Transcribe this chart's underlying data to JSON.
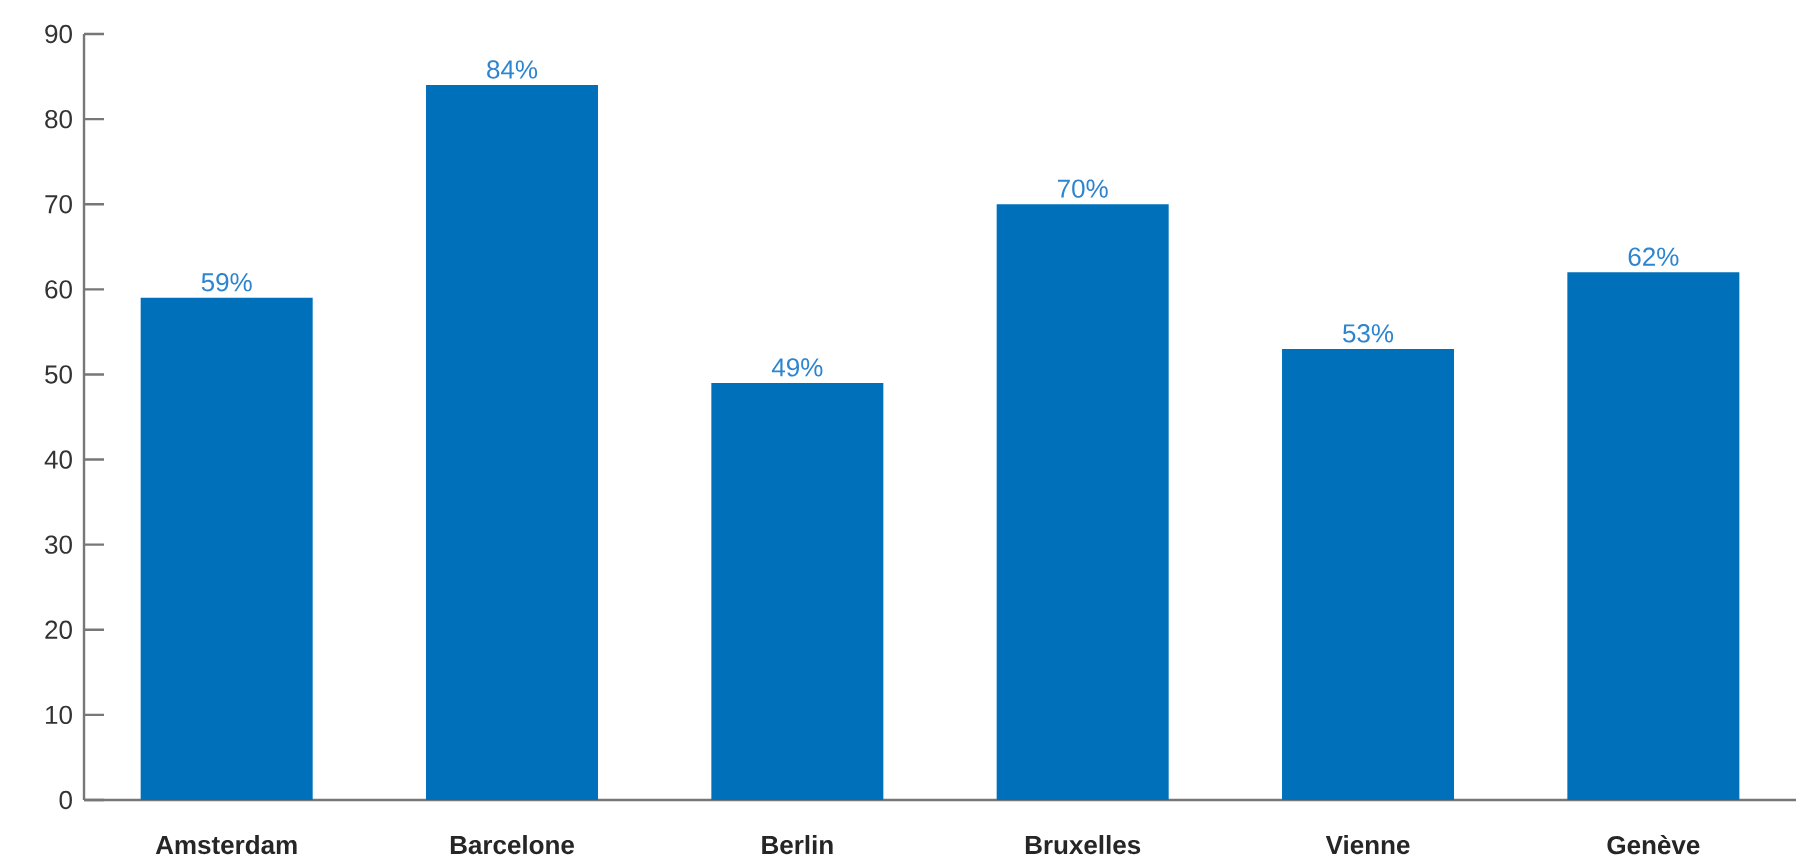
{
  "chart_data": {
    "type": "bar",
    "categories": [
      "Amsterdam",
      "Barcelone",
      "Berlin",
      "Bruxelles",
      "Vienne",
      "Genève"
    ],
    "values": [
      59,
      84,
      49,
      70,
      53,
      62
    ],
    "value_labels": [
      "59%",
      "84%",
      "49%",
      "70%",
      "53%",
      "62%"
    ],
    "color": "#0070bb",
    "ylim": [
      0,
      90
    ],
    "yticks": [
      0,
      10,
      20,
      30,
      40,
      50,
      60,
      70,
      80,
      90
    ],
    "grid": false
  }
}
